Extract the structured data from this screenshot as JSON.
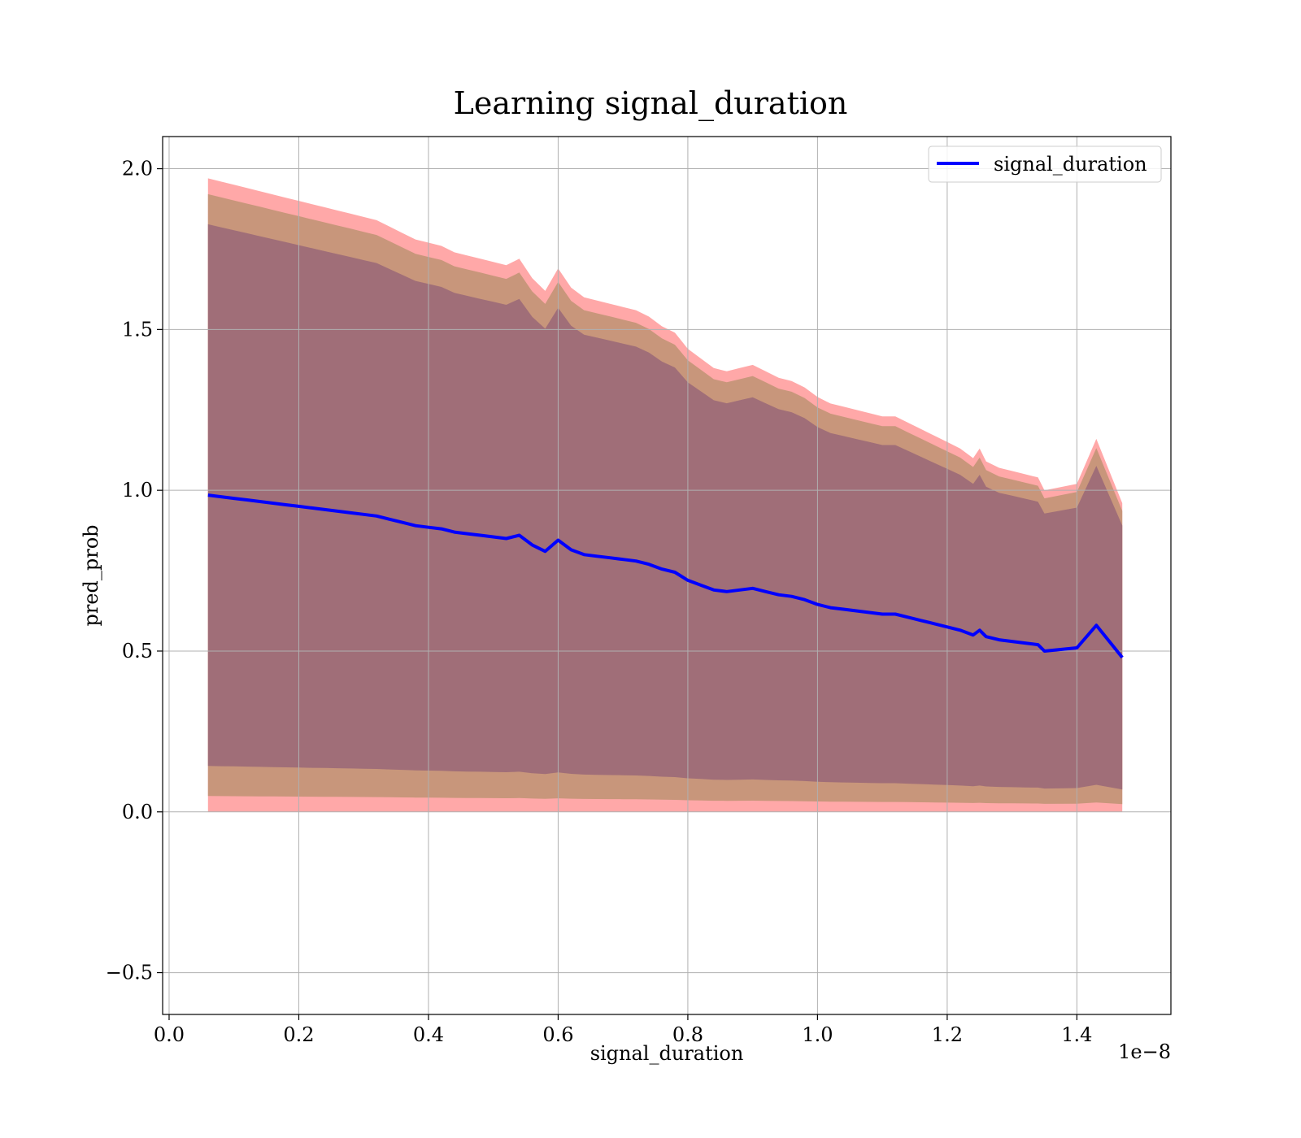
{
  "chart_data": {
    "type": "line",
    "title": "Learning signal_duration",
    "xlabel": "signal_duration",
    "ylabel": "pred_prob",
    "x_offset_label": "1e−8",
    "xlim": [
      -0.01,
      1.545
    ],
    "ylim": [
      -0.63,
      2.1
    ],
    "grid": true,
    "legend_position": "top-right",
    "x_ticks": [
      0.0,
      0.2,
      0.4,
      0.6,
      0.8,
      1.0,
      1.2,
      1.4
    ],
    "x_tick_labels": [
      "0.0",
      "0.2",
      "0.4",
      "0.6",
      "0.8",
      "1.0",
      "1.2",
      "1.4"
    ],
    "y_ticks": [
      -0.5,
      0.0,
      0.5,
      1.0,
      1.5,
      2.0
    ],
    "y_tick_labels": [
      "−0.5",
      "0.0",
      "0.5",
      "1.0",
      "1.5",
      "2.0"
    ],
    "colors": {
      "line": "#0000ff",
      "band_outer": "#ff9999",
      "band_middle": "#c8967b",
      "band_inner": "#a06e78"
    },
    "series": [
      {
        "name": "signal_duration",
        "x": [
          0.06,
          0.08,
          0.1,
          0.12,
          0.14,
          0.16,
          0.18,
          0.2,
          0.22,
          0.24,
          0.26,
          0.28,
          0.3,
          0.32,
          0.34,
          0.36,
          0.38,
          0.4,
          0.42,
          0.44,
          0.46,
          0.48,
          0.5,
          0.52,
          0.54,
          0.56,
          0.58,
          0.6,
          0.62,
          0.64,
          0.66,
          0.68,
          0.7,
          0.72,
          0.74,
          0.76,
          0.78,
          0.8,
          0.82,
          0.84,
          0.86,
          0.88,
          0.9,
          0.92,
          0.94,
          0.96,
          0.98,
          1.0,
          1.02,
          1.04,
          1.06,
          1.08,
          1.1,
          1.12,
          1.14,
          1.16,
          1.18,
          1.2,
          1.22,
          1.24,
          1.25,
          1.26,
          1.28,
          1.3,
          1.32,
          1.34,
          1.35,
          1.4,
          1.43,
          1.47
        ],
        "y": [
          0.985,
          0.98,
          0.975,
          0.97,
          0.965,
          0.96,
          0.955,
          0.95,
          0.945,
          0.94,
          0.935,
          0.93,
          0.925,
          0.92,
          0.91,
          0.9,
          0.89,
          0.885,
          0.88,
          0.87,
          0.865,
          0.86,
          0.855,
          0.85,
          0.86,
          0.83,
          0.81,
          0.845,
          0.815,
          0.8,
          0.795,
          0.79,
          0.785,
          0.78,
          0.77,
          0.755,
          0.745,
          0.72,
          0.705,
          0.69,
          0.685,
          0.69,
          0.695,
          0.685,
          0.675,
          0.67,
          0.66,
          0.645,
          0.635,
          0.63,
          0.625,
          0.62,
          0.615,
          0.615,
          0.605,
          0.595,
          0.585,
          0.575,
          0.565,
          0.55,
          0.565,
          0.545,
          0.535,
          0.53,
          0.525,
          0.52,
          0.5,
          0.51,
          0.58,
          0.48
        ]
      }
    ]
  }
}
